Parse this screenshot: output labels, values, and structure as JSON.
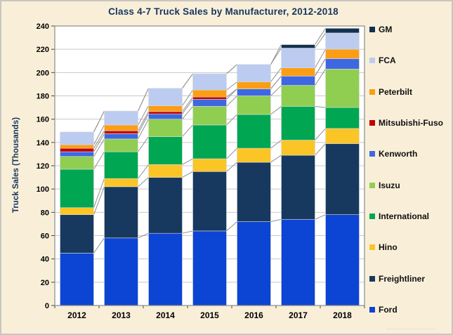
{
  "window": {
    "title": "Class 4-7 Truck Sales by Manufacturer, 2012-2018"
  },
  "colors": {
    "background": "#F9EFD9",
    "plot_background": "#FFFFFF",
    "grid": "#C8C8C8",
    "axis_border": "#8A8A8A",
    "tick_mark": "#444444",
    "connector_line": "#909090",
    "title_text": "#17365D",
    "tick_text": "#000000"
  },
  "chart_data": {
    "type": "bar",
    "stacked": true,
    "title": "Class 4-7 Truck Sales by Manufacturer, 2012-2018",
    "xlabel": "",
    "ylabel": "Truck Sales (Thousands)",
    "categories": [
      "2012",
      "2013",
      "2014",
      "2015",
      "2016",
      "2017",
      "2018"
    ],
    "ylim": [
      0,
      240
    ],
    "ytick_step": 20,
    "grid": true,
    "legend_position": "right",
    "series_lines": true,
    "series": [
      {
        "name": "Ford",
        "color": "#0C44D3",
        "values": [
          45,
          58,
          62,
          64,
          72,
          74,
          78
        ]
      },
      {
        "name": "Freightliner",
        "color": "#17395F",
        "values": [
          33,
          44,
          48,
          51,
          51,
          55,
          61
        ]
      },
      {
        "name": "Hino",
        "color": "#FAC525",
        "values": [
          6,
          7,
          11,
          11,
          12,
          13,
          13
        ]
      },
      {
        "name": "International",
        "color": "#00A651",
        "values": [
          33,
          23,
          24,
          29,
          29,
          29,
          18
        ]
      },
      {
        "name": "Isuzu",
        "color": "#90CE51",
        "values": [
          11,
          11,
          15,
          16,
          16,
          18,
          33
        ]
      },
      {
        "name": "Kenworth",
        "color": "#3E68E0",
        "values": [
          4,
          4.5,
          4.5,
          6,
          6,
          8,
          9
        ]
      },
      {
        "name": "Mitsubishi-Fuso",
        "color": "#C00000",
        "values": [
          3,
          2.5,
          2,
          2,
          0,
          0,
          0
        ]
      },
      {
        "name": "Peterbilt",
        "color": "#FB9E15",
        "values": [
          3,
          5,
          5,
          6,
          6,
          7,
          8
        ]
      },
      {
        "name": "FCA",
        "color": "#BCCBF0",
        "values": [
          11,
          12,
          15,
          14,
          15,
          17,
          14
        ]
      },
      {
        "name": "GM",
        "color": "#14304F",
        "values": [
          0,
          0,
          0,
          0,
          0,
          3,
          4
        ]
      }
    ],
    "legend_order_top_to_bottom": [
      "GM",
      "FCA",
      "Peterbilt",
      "Mitsubishi-Fuso",
      "Kenworth",
      "Isuzu",
      "International",
      "Hino",
      "Freightliner",
      "Ford"
    ]
  }
}
